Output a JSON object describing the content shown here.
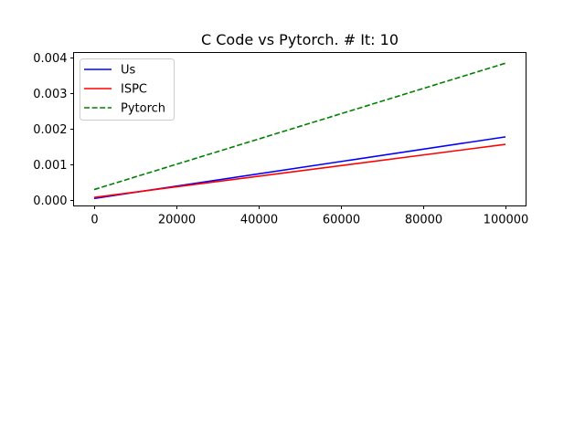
{
  "chart_data": {
    "type": "line",
    "title": "C Code vs Pytorch. # It: 10",
    "xlabel": "",
    "ylabel": "",
    "xlim": [
      -5000,
      105000
    ],
    "ylim": [
      -0.00016,
      0.00415
    ],
    "xticks": [
      0,
      20000,
      40000,
      60000,
      80000,
      100000
    ],
    "xtick_labels": [
      "0",
      "20000",
      "40000",
      "60000",
      "80000",
      "100000"
    ],
    "yticks": [
      0.0,
      0.001,
      0.002,
      0.003,
      0.004
    ],
    "ytick_labels": [
      "0.000",
      "0.001",
      "0.002",
      "0.003",
      "0.004"
    ],
    "grid": false,
    "legend_position": "top-left",
    "series": [
      {
        "name": "Us",
        "color": "#0000ff",
        "dash": "solid",
        "x": [
          0,
          100000
        ],
        "values": [
          5e-05,
          0.00178
        ]
      },
      {
        "name": "ISPC",
        "color": "#ff0000",
        "dash": "solid",
        "x": [
          0,
          100000
        ],
        "values": [
          8e-05,
          0.00157
        ]
      },
      {
        "name": "Pytorch",
        "color": "#008000",
        "dash": "dashed",
        "x": [
          0,
          100000
        ],
        "values": [
          0.0003,
          0.00385
        ]
      }
    ]
  }
}
